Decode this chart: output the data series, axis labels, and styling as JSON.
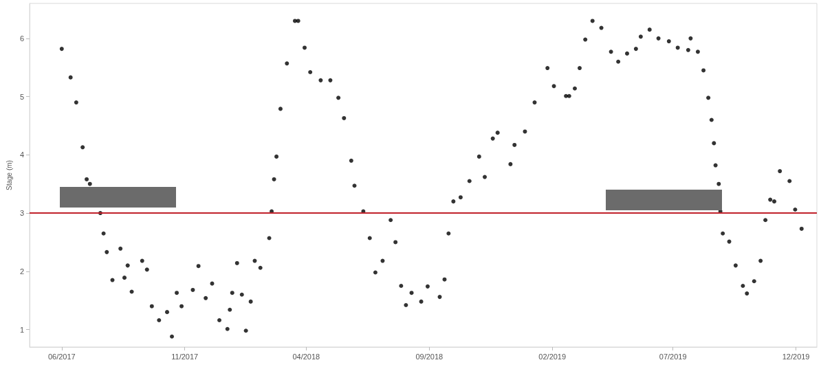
{
  "chart_data": {
    "type": "scatter",
    "ylabel": "Stage (m)",
    "marker": "circle",
    "xlim": [
      "2017-04-22",
      "2019-12-27"
    ],
    "xticks": [
      {
        "value": "2017-06-01",
        "label": "06/2017"
      },
      {
        "value": "2017-11-01",
        "label": "11/2017"
      },
      {
        "value": "2018-04-01",
        "label": "04/2018"
      },
      {
        "value": "2018-09-01",
        "label": "09/2018"
      },
      {
        "value": "2019-02-01",
        "label": "02/2019"
      },
      {
        "value": "2019-07-01",
        "label": "07/2019"
      },
      {
        "value": "2019-12-01",
        "label": "12/2019"
      }
    ],
    "ylim": [
      0.7,
      6.6
    ],
    "yticks": [
      1,
      2,
      3,
      4,
      5,
      6
    ],
    "ref_lines": [
      {
        "axis": "y",
        "value": 3,
        "color": "#c0202a"
      }
    ],
    "series": [
      {
        "color": "#000000",
        "x": [
          "2017-06-01",
          "2017-06-12",
          "2017-06-19",
          "2017-06-27",
          "2017-07-02",
          "2017-07-06",
          "2017-07-19",
          "2017-07-23",
          "2017-07-27",
          "2017-08-03",
          "2017-08-13",
          "2017-08-18",
          "2017-08-22",
          "2017-08-27",
          "2017-09-09",
          "2017-09-15",
          "2017-09-21",
          "2017-09-30",
          "2017-10-10",
          "2017-10-16",
          "2017-10-22",
          "2017-10-28",
          "2017-11-11",
          "2017-11-18",
          "2017-11-27",
          "2017-12-05",
          "2017-12-14",
          "2017-12-24",
          "2017-12-27",
          "2017-12-30",
          "2018-01-05",
          "2018-01-11",
          "2018-01-16",
          "2018-01-22",
          "2018-01-27",
          "2018-02-03",
          "2018-02-14",
          "2018-02-17",
          "2018-02-20",
          "2018-02-23",
          "2018-02-28",
          "2018-03-08",
          "2018-03-18",
          "2018-03-22",
          "2018-03-30",
          "2018-04-06",
          "2018-04-19",
          "2018-05-01",
          "2018-05-11",
          "2018-05-18",
          "2018-05-27",
          "2018-05-31",
          "2018-06-11",
          "2018-06-19",
          "2018-06-26",
          "2018-07-05",
          "2018-07-15",
          "2018-07-21",
          "2018-07-28",
          "2018-08-03",
          "2018-08-10",
          "2018-08-22",
          "2018-08-30",
          "2018-09-14",
          "2018-09-20",
          "2018-09-25",
          "2018-10-01",
          "2018-10-10",
          "2018-10-21",
          "2018-11-02",
          "2018-11-09",
          "2018-11-19",
          "2018-11-25",
          "2018-12-11",
          "2018-12-16",
          "2018-12-29",
          "2019-01-10",
          "2019-01-26",
          "2019-02-03",
          "2019-02-18",
          "2019-02-22",
          "2019-03-01",
          "2019-03-07",
          "2019-03-14",
          "2019-03-23",
          "2019-04-03",
          "2019-04-15",
          "2019-04-24",
          "2019-05-05",
          "2019-05-16",
          "2019-05-22",
          "2019-06-02",
          "2019-06-13",
          "2019-06-26",
          "2019-07-07",
          "2019-07-20",
          "2019-07-23",
          "2019-08-01",
          "2019-08-08",
          "2019-08-14",
          "2019-08-18",
          "2019-08-21",
          "2019-08-23",
          "2019-08-27",
          "2019-08-29",
          "2019-09-01",
          "2019-09-09",
          "2019-09-17",
          "2019-09-26",
          "2019-10-01",
          "2019-10-10",
          "2019-10-18",
          "2019-10-24",
          "2019-10-30",
          "2019-11-04",
          "2019-11-11",
          "2019-11-23",
          "2019-11-30",
          "2019-12-08"
        ],
        "values": [
          5.82,
          5.33,
          4.9,
          4.13,
          3.58,
          3.5,
          3.0,
          2.65,
          2.33,
          1.85,
          2.39,
          1.89,
          2.1,
          1.65,
          2.18,
          2.03,
          1.4,
          1.16,
          1.3,
          0.88,
          1.63,
          1.4,
          1.68,
          2.09,
          1.54,
          1.79,
          1.16,
          1.01,
          1.34,
          1.63,
          2.14,
          1.6,
          0.98,
          1.48,
          2.18,
          2.06,
          2.57,
          3.03,
          3.58,
          3.97,
          4.79,
          5.57,
          6.3,
          6.3,
          5.84,
          5.42,
          5.28,
          5.28,
          4.98,
          4.63,
          3.9,
          3.47,
          3.03,
          2.57,
          1.98,
          2.18,
          2.88,
          2.5,
          1.75,
          1.42,
          1.63,
          1.48,
          1.74,
          1.56,
          1.86,
          2.65,
          3.2,
          3.27,
          3.55,
          3.97,
          3.62,
          4.28,
          4.38,
          3.84,
          4.17,
          4.4,
          4.9,
          5.49,
          5.18,
          5.01,
          5.01,
          5.14,
          5.49,
          5.98,
          6.3,
          6.18,
          5.77,
          5.6,
          5.74,
          5.82,
          6.03,
          6.15,
          6.0,
          5.95,
          5.84,
          5.8,
          6.0,
          5.77,
          5.45,
          4.98,
          4.6,
          4.2,
          3.82,
          3.5,
          3.03,
          2.65,
          2.51,
          2.1,
          1.75,
          1.62,
          1.83,
          2.18,
          2.88,
          3.23,
          3.2,
          3.72,
          3.55,
          3.06,
          2.73
        ]
      }
    ]
  }
}
